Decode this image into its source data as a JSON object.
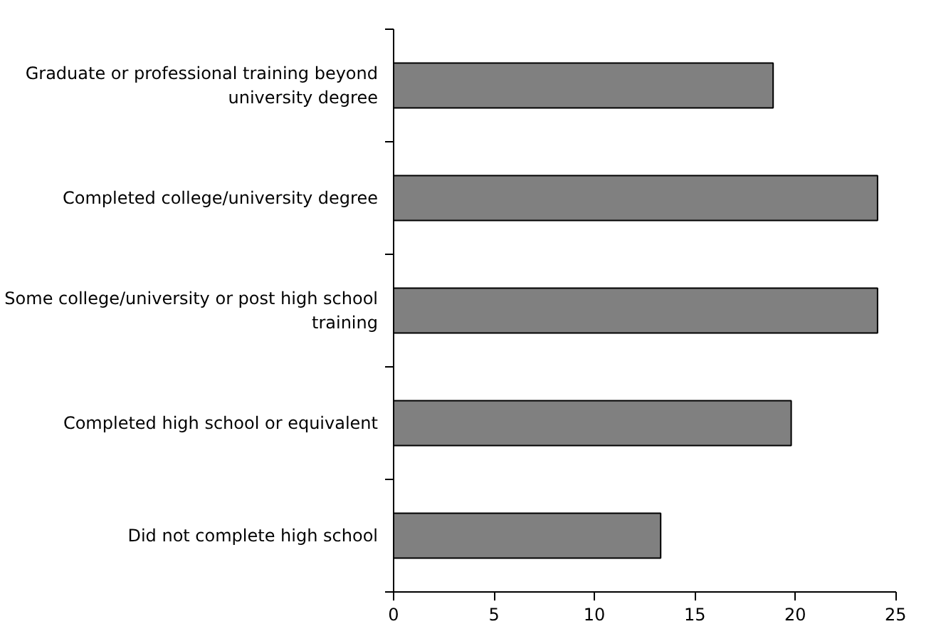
{
  "chart_data": {
    "type": "bar",
    "orientation": "horizontal",
    "categories": [
      "Graduate or professional training beyond university degree",
      "Completed college/university degree",
      "Some college/university or post high school training",
      "Completed high school or equivalent",
      "Did not complete high school"
    ],
    "values": [
      18.9,
      24.1,
      24.1,
      19.8,
      13.3
    ],
    "color": "#808080",
    "xlim": [
      0,
      25
    ],
    "xticks": [
      0,
      5,
      10,
      15,
      20,
      25
    ],
    "grid": false
  }
}
